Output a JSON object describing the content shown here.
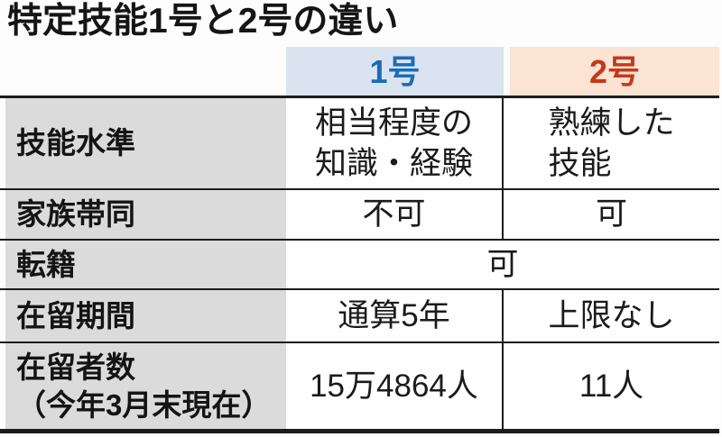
{
  "title": "特定技能1号と2号の違い",
  "colors": {
    "type1_header_bg": "#dae3f0",
    "type1_header_text": "#1a6cb5",
    "type2_header_bg": "#fbe4d3",
    "type2_header_text": "#c33a1b",
    "label_column_bg": "#dbdbdb",
    "border": "#1c1c1c"
  },
  "table": {
    "columns": {
      "type1": "1号",
      "type2": "2号"
    },
    "rows": {
      "skill_level": {
        "label": "技能水準",
        "type1": "相当程度の\n知識・経験",
        "type2": "熟練した\n技能"
      },
      "family": {
        "label": "家族帯同",
        "type1": "不可",
        "type2": "可"
      },
      "transfer": {
        "label": "転籍",
        "merged": "可"
      },
      "stay_period": {
        "label": "在留期間",
        "type1": "通算5年",
        "type2": "上限なし"
      },
      "residents": {
        "label": "在留者数\n（今年3月末現在）",
        "type1": "15万4864人",
        "type2": "11人"
      }
    }
  },
  "chart_data": {
    "type": "table",
    "title": "特定技能1号と2号の違い",
    "columns": [
      "",
      "1号",
      "2号"
    ],
    "rows": [
      [
        "技能水準",
        "相当程度の知識・経験",
        "熟練した技能"
      ],
      [
        "家族帯同",
        "不可",
        "可"
      ],
      [
        "転籍",
        "可",
        "可"
      ],
      [
        "在留期間",
        "通算5年",
        "上限なし"
      ],
      [
        "在留者数（今年3月末現在）",
        "15万4864人",
        "11人"
      ]
    ],
    "notes": "転籍 row value 可 is a single merged cell spanning both 1号 and 2号 columns"
  }
}
